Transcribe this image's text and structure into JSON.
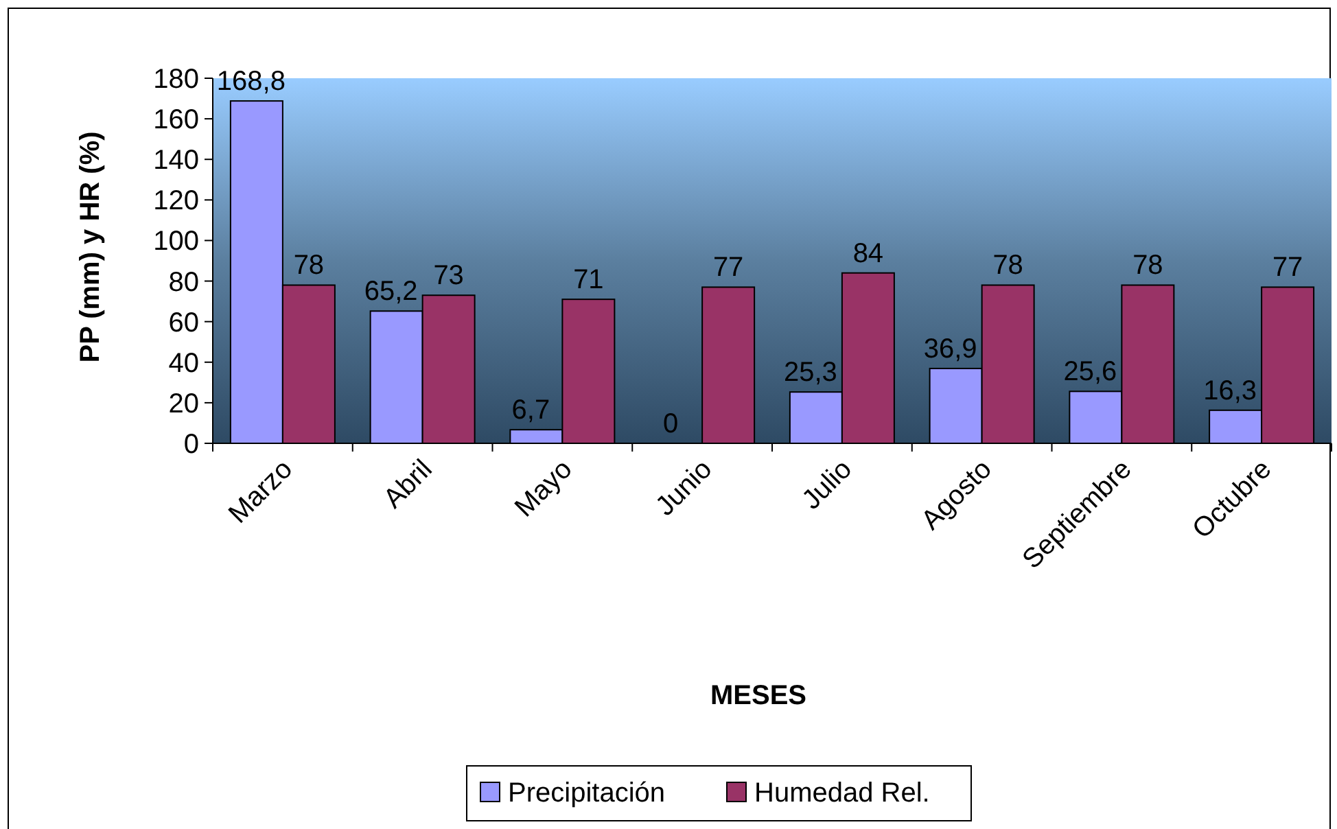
{
  "chart_data": {
    "type": "bar",
    "xlabel": "MESES",
    "ylabel": "PP (mm) y HR (%)",
    "categories": [
      "Marzo",
      "Abril",
      "Mayo",
      "Junio",
      "Julio",
      "Agosto",
      "Septiembre",
      "Octubre"
    ],
    "series": [
      {
        "name": "Precipitación",
        "color": "#9999ff",
        "values": [
          168.8,
          65.2,
          6.7,
          0,
          25.3,
          36.9,
          25.6,
          16.3
        ],
        "value_labels": [
          "168,8",
          "65,2",
          "6,7",
          "0",
          "25,3",
          "36,9",
          "25,6",
          "16,3"
        ]
      },
      {
        "name": "Humedad Rel.",
        "color": "#993366",
        "values": [
          78,
          73,
          71,
          77,
          84,
          78,
          78,
          77
        ],
        "value_labels": [
          "78",
          "73",
          "71",
          "77",
          "84",
          "78",
          "78",
          "77"
        ]
      }
    ],
    "ylim": [
      0,
      180
    ],
    "yticks": [
      0,
      20,
      40,
      60,
      80,
      100,
      120,
      140,
      160,
      180
    ],
    "legend": "bottom"
  }
}
